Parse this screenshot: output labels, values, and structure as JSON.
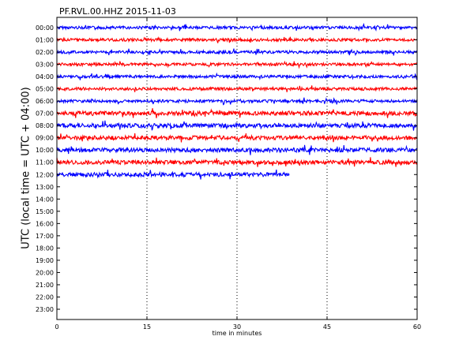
{
  "chart_data": {
    "type": "line",
    "title": "PF.RVL.00.HHZ 2015-11-03",
    "xlabel": "time in minutes",
    "ylabel": "UTC (local time = UTC + 04:00)",
    "xlim": [
      0,
      60
    ],
    "xticks": [
      "0",
      "15",
      "30",
      "45",
      "60"
    ],
    "yticks": [
      "00:00",
      "01:00",
      "02:00",
      "03:00",
      "04:00",
      "05:00",
      "06:00",
      "07:00",
      "08:00",
      "09:00",
      "10:00",
      "11:00",
      "12:00",
      "13:00",
      "14:00",
      "15:00",
      "16:00",
      "17:00",
      "18:00",
      "19:00",
      "20:00",
      "21:00",
      "22:00",
      "23:00"
    ],
    "grid": "vertical dotted lines at 15, 30, 45",
    "series": [
      {
        "name": "00:00",
        "color": "#0000ff",
        "end_minute": 60
      },
      {
        "name": "01:00",
        "color": "#ff0000",
        "end_minute": 60
      },
      {
        "name": "02:00",
        "color": "#0000ff",
        "end_minute": 60
      },
      {
        "name": "03:00",
        "color": "#ff0000",
        "end_minute": 60
      },
      {
        "name": "04:00",
        "color": "#0000ff",
        "end_minute": 60
      },
      {
        "name": "05:00",
        "color": "#ff0000",
        "end_minute": 60
      },
      {
        "name": "06:00",
        "color": "#0000ff",
        "end_minute": 60
      },
      {
        "name": "07:00",
        "color": "#ff0000",
        "end_minute": 60
      },
      {
        "name": "08:00",
        "color": "#0000ff",
        "end_minute": 60
      },
      {
        "name": "09:00",
        "color": "#ff0000",
        "end_minute": 60
      },
      {
        "name": "10:00",
        "color": "#0000ff",
        "end_minute": 60
      },
      {
        "name": "11:00",
        "color": "#ff0000",
        "end_minute": 60
      },
      {
        "name": "12:00",
        "color": "#0000ff",
        "end_minute": 38.7
      }
    ]
  }
}
